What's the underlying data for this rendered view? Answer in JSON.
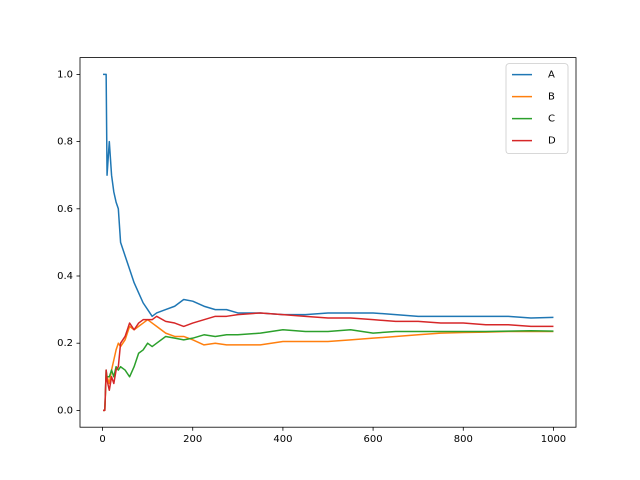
{
  "chart_data": {
    "type": "line",
    "x": [
      1,
      5,
      8,
      10,
      15,
      20,
      25,
      30,
      35,
      40,
      50,
      60,
      70,
      80,
      90,
      100,
      110,
      120,
      140,
      160,
      180,
      200,
      225,
      250,
      275,
      300,
      350,
      400,
      450,
      500,
      550,
      600,
      650,
      700,
      750,
      800,
      850,
      900,
      950,
      1000
    ],
    "series": [
      {
        "name": "A",
        "color": "#1f77b4",
        "values": [
          1,
          1,
          1,
          0.7,
          0.8,
          0.7,
          0.65,
          0.62,
          0.6,
          0.5,
          0.46,
          0.42,
          0.38,
          0.35,
          0.32,
          0.3,
          0.28,
          0.29,
          0.3,
          0.31,
          0.33,
          0.325,
          0.31,
          0.3,
          0.3,
          0.29,
          0.29,
          0.285,
          0.285,
          0.29,
          0.29,
          0.29,
          0.285,
          0.28,
          0.28,
          0.28,
          0.28,
          0.28,
          0.275,
          0.277
        ]
      },
      {
        "name": "B",
        "color": "#ff7f0e",
        "values": [
          0,
          0,
          0.1,
          0.1,
          0.08,
          0.12,
          0.15,
          0.18,
          0.2,
          0.19,
          0.21,
          0.25,
          0.24,
          0.25,
          0.26,
          0.27,
          0.26,
          0.25,
          0.23,
          0.22,
          0.22,
          0.21,
          0.195,
          0.2,
          0.195,
          0.195,
          0.195,
          0.205,
          0.205,
          0.205,
          0.21,
          0.215,
          0.22,
          0.225,
          0.23,
          0.232,
          0.233,
          0.235,
          0.235,
          0.235
        ]
      },
      {
        "name": "C",
        "color": "#2ca02c",
        "values": [
          0,
          0,
          0.12,
          0.1,
          0.1,
          0.12,
          0.1,
          0.13,
          0.12,
          0.13,
          0.12,
          0.1,
          0.13,
          0.17,
          0.18,
          0.2,
          0.19,
          0.2,
          0.22,
          0.215,
          0.21,
          0.215,
          0.225,
          0.22,
          0.225,
          0.225,
          0.23,
          0.24,
          0.235,
          0.235,
          0.24,
          0.23,
          0.235,
          0.235,
          0.235,
          0.235,
          0.235,
          0.236,
          0.237,
          0.236
        ]
      },
      {
        "name": "D",
        "color": "#d62728",
        "values": [
          0,
          0,
          0.12,
          0.09,
          0.06,
          0.1,
          0.08,
          0.12,
          0.13,
          0.2,
          0.22,
          0.26,
          0.24,
          0.26,
          0.27,
          0.27,
          0.27,
          0.28,
          0.265,
          0.26,
          0.25,
          0.26,
          0.27,
          0.28,
          0.28,
          0.285,
          0.29,
          0.285,
          0.28,
          0.275,
          0.275,
          0.27,
          0.265,
          0.265,
          0.26,
          0.26,
          0.255,
          0.255,
          0.25,
          0.25
        ]
      }
    ],
    "xlim": [
      -50,
      1050
    ],
    "xticks": [
      0,
      200,
      400,
      600,
      800,
      1000
    ],
    "ylim": [
      -0.05,
      1.05
    ],
    "yticks": [
      {
        "value": 0,
        "label": "0.0"
      },
      {
        "value": 0.2,
        "label": "0.2"
      },
      {
        "value": 0.4,
        "label": "0.4"
      },
      {
        "value": 0.6,
        "label": "0.6"
      },
      {
        "value": 0.8,
        "label": "0.8"
      },
      {
        "value": 1,
        "label": "1.0"
      }
    ],
    "grid": false,
    "legend": "upper right"
  }
}
